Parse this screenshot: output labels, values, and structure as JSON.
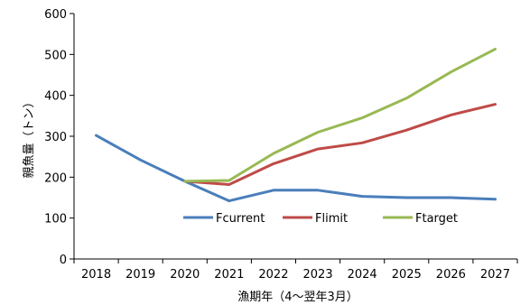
{
  "chart_data": {
    "type": "line",
    "xlabel": "漁期年（4～翌年3月）",
    "ylabel": "親魚量（トン）",
    "ylim": [
      0,
      600
    ],
    "yticks": [
      0,
      100,
      200,
      300,
      400,
      500,
      600
    ],
    "grid": false,
    "legend_position": "bottom-right",
    "categories": [
      "2018",
      "2019",
      "2020",
      "2021",
      "2022",
      "2023",
      "2024",
      "2025",
      "2026",
      "2027"
    ],
    "series": [
      {
        "name": "Fcurrent",
        "color": "#4a7ebb",
        "values": [
          302,
          242,
          190,
          142,
          168,
          168,
          153,
          150,
          150,
          146
        ]
      },
      {
        "name": "Flimit",
        "color": "#be4b48",
        "values": [
          null,
          null,
          190,
          182,
          233,
          269,
          284,
          315,
          352,
          378
        ]
      },
      {
        "name": "Ftarget",
        "color": "#98b954",
        "values": [
          null,
          null,
          190,
          192,
          258,
          310,
          345,
          393,
          457,
          513
        ]
      }
    ]
  }
}
